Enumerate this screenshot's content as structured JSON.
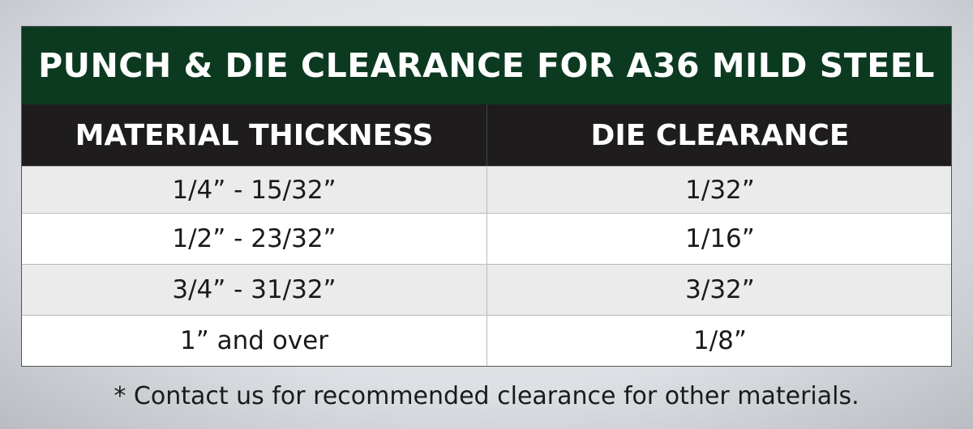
{
  "title": "PUNCH & DIE CLEARANCE FOR A36 MILD STEEL",
  "headers": [
    "MATERIAL THICKNESS",
    "DIE CLEARANCE"
  ],
  "rows": [
    [
      "1/4” - 15/32”",
      "1/32”"
    ],
    [
      "1/2” - 23/32”",
      "1/16”"
    ],
    [
      "3/4” - 31/32”",
      "3/32”"
    ],
    [
      "1” and over",
      "1/8”"
    ]
  ],
  "footnote": "* Contact us for recommended clearance for other materials.",
  "colors": {
    "title_bg": "#0c3a20",
    "header_bg": "#1e1c1d",
    "stripe": "#ecebeb"
  }
}
